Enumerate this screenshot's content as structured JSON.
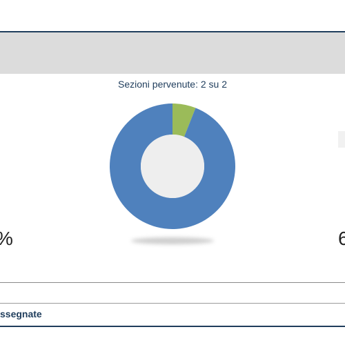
{
  "sections": {
    "label": "Sezioni pervenute: 2 su 2"
  },
  "chart_data": {
    "type": "pie",
    "values": [
      6,
      94
    ],
    "colors": [
      "#9bbb59",
      "#4f81bd"
    ],
    "center_color": "#eeeeee"
  },
  "left_panel": {
    "value_fragment": "%"
  },
  "right_panel": {
    "value_fragment": "6"
  },
  "footer": {
    "label": "ssegnate"
  }
}
